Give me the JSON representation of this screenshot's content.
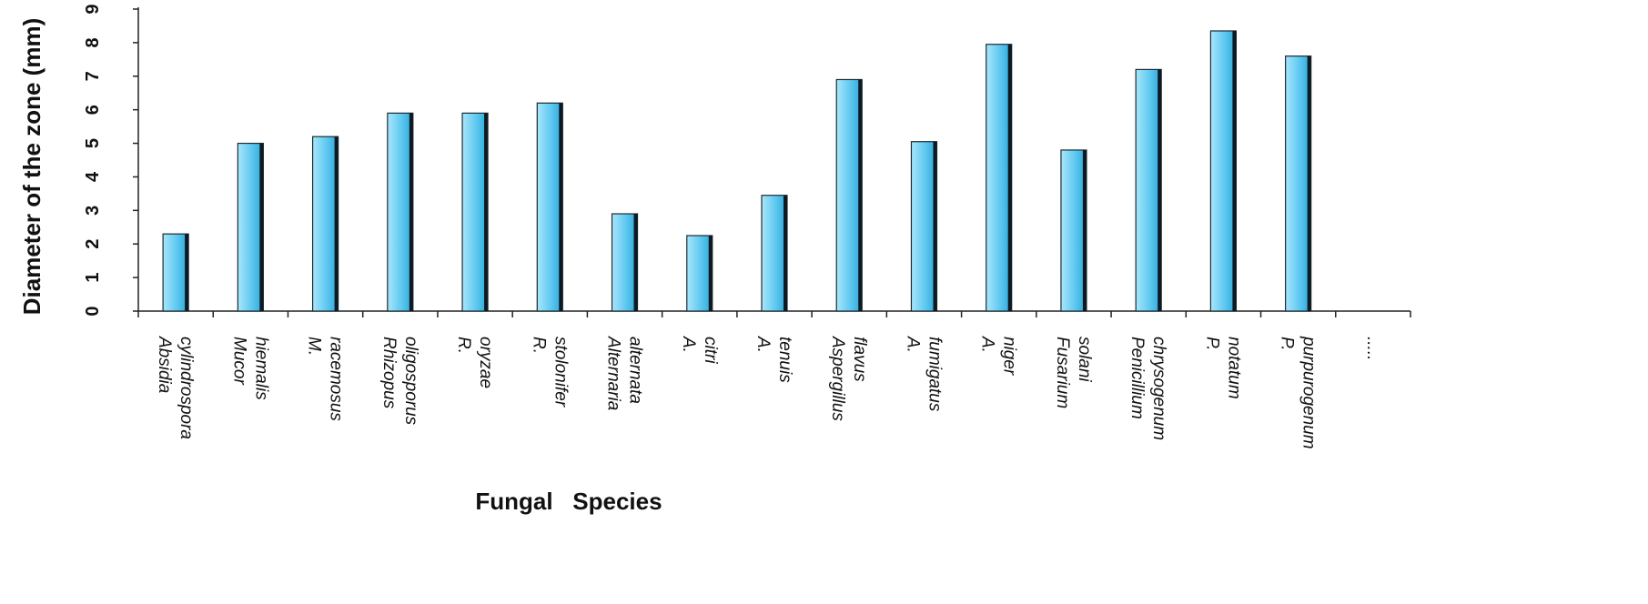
{
  "chart_data": {
    "type": "bar",
    "xlabel": "Fungal   Species",
    "ylabel": "Diameter of the zone (mm)",
    "ylim": [
      0,
      9
    ],
    "yticks": [
      "0",
      "1",
      "2",
      "3",
      "4",
      "5",
      "6",
      "7",
      "8",
      "9"
    ],
    "grid": false,
    "legend": "none",
    "bar_color": "#5ec8f0",
    "categories": [
      "Absidia cylindrospora",
      "Mucor hiemalis",
      "M. racemosus",
      "Rhizopus oligosporus",
      "R. oryzae",
      "R. stolonifer",
      "Alternaria alternata",
      "A. citri",
      "A. tenuis",
      "Aspergillus flavus",
      "A. fumigatus",
      "A. niger",
      "Fusarium solani",
      "Penicillium chrysogenum",
      "P. notatum",
      "P. purpurogenum",
      "....."
    ],
    "values": [
      2.3,
      5.0,
      5.2,
      5.9,
      5.9,
      6.2,
      2.9,
      2.25,
      3.45,
      6.9,
      5.05,
      7.95,
      4.8,
      7.2,
      8.35,
      7.6,
      null
    ]
  }
}
